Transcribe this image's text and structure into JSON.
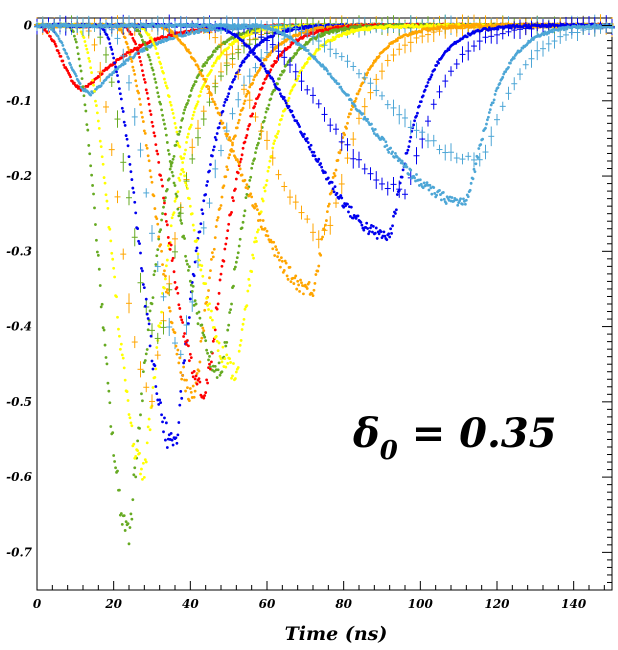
{
  "chart_data": {
    "type": "scatter",
    "title": "",
    "xlabel": "Time (ns)",
    "ylabel": "",
    "xlim": [
      0,
      150
    ],
    "ylim": [
      -0.75,
      0.01
    ],
    "x_ticks": [
      0,
      20,
      40,
      60,
      80,
      100,
      120,
      140
    ],
    "y_ticks": [
      0,
      -0.1,
      -0.2,
      -0.3,
      -0.4,
      -0.5,
      -0.6,
      -0.7
    ],
    "x_tick_labels": [
      "0",
      "20",
      "40",
      "60",
      "80",
      "100",
      "120",
      "140"
    ],
    "y_tick_labels": [
      "0",
      "-0.1",
      "-0.2",
      "-0.3",
      "-0.4",
      "-0.5",
      "-0.6",
      "-0.7"
    ],
    "grid": false,
    "annotation": {
      "symbol": "δ",
      "subscript": "0",
      "text": " = 0.35"
    },
    "series": [
      {
        "color": "#ff0000",
        "start": 0,
        "peak_time": 12,
        "min": -0.085,
        "fall_rate": 0.5,
        "style": "dots"
      },
      {
        "color": "#4da6d6",
        "start": 2,
        "peak_time": 14,
        "min": -0.09,
        "fall_rate": 0.5,
        "style": "dots"
      },
      {
        "color": "#66aa22",
        "start": 8,
        "peak_time": 24,
        "min": -0.67,
        "fall_rate": 0.75,
        "style": "dots"
      },
      {
        "color": "#ffff00",
        "start": 10,
        "peak_time": 28,
        "min": -0.59,
        "fall_rate": 0.78,
        "style": "dots"
      },
      {
        "color": "#ffa500",
        "start": 12,
        "peak_time": 30,
        "min": -0.5,
        "fall_rate": 0.7,
        "style": "errorbars"
      },
      {
        "color": "#66aa22",
        "start": 14,
        "peak_time": 32,
        "min": -0.42,
        "fall_rate": 0.7,
        "style": "errorbars"
      },
      {
        "color": "#0000ee",
        "start": 16,
        "peak_time": 36,
        "min": -0.56,
        "fall_rate": 0.8,
        "style": "dots"
      },
      {
        "color": "#4da6d6",
        "start": 18,
        "peak_time": 38,
        "min": -0.43,
        "fall_rate": 0.65,
        "style": "errorbars"
      },
      {
        "color": "#ffa500",
        "start": 20,
        "peak_time": 41,
        "min": -0.49,
        "fall_rate": 0.75,
        "style": "dots"
      },
      {
        "color": "#ff0000",
        "start": 22,
        "peak_time": 44,
        "min": -0.49,
        "fall_rate": 0.75,
        "style": "dots"
      },
      {
        "color": "#66aa22",
        "start": 24,
        "peak_time": 48,
        "min": -0.46,
        "fall_rate": 0.75,
        "style": "dots"
      },
      {
        "color": "#ffff00",
        "start": 26,
        "peak_time": 52,
        "min": -0.46,
        "fall_rate": 0.72,
        "style": "dots"
      },
      {
        "color": "#ffa500",
        "start": 30,
        "peak_time": 72,
        "min": -0.35,
        "fall_rate": 0.75,
        "style": "dots"
      },
      {
        "color": "#ffa500",
        "start": 40,
        "peak_time": 76,
        "min": -0.28,
        "fall_rate": 0.7,
        "style": "errorbars"
      },
      {
        "color": "#0000ee",
        "start": 44,
        "peak_time": 92,
        "min": -0.28,
        "fall_rate": 0.85,
        "style": "dots"
      },
      {
        "color": "#0000ee",
        "start": 50,
        "peak_time": 96,
        "min": -0.22,
        "fall_rate": 0.7,
        "style": "errorbars"
      },
      {
        "color": "#4da6d6",
        "start": 55,
        "peak_time": 112,
        "min": -0.235,
        "fall_rate": 0.85,
        "style": "dots"
      },
      {
        "color": "#4da6d6",
        "start": 60,
        "peak_time": 116,
        "min": -0.18,
        "fall_rate": 0.7,
        "style": "errorbars"
      }
    ]
  }
}
